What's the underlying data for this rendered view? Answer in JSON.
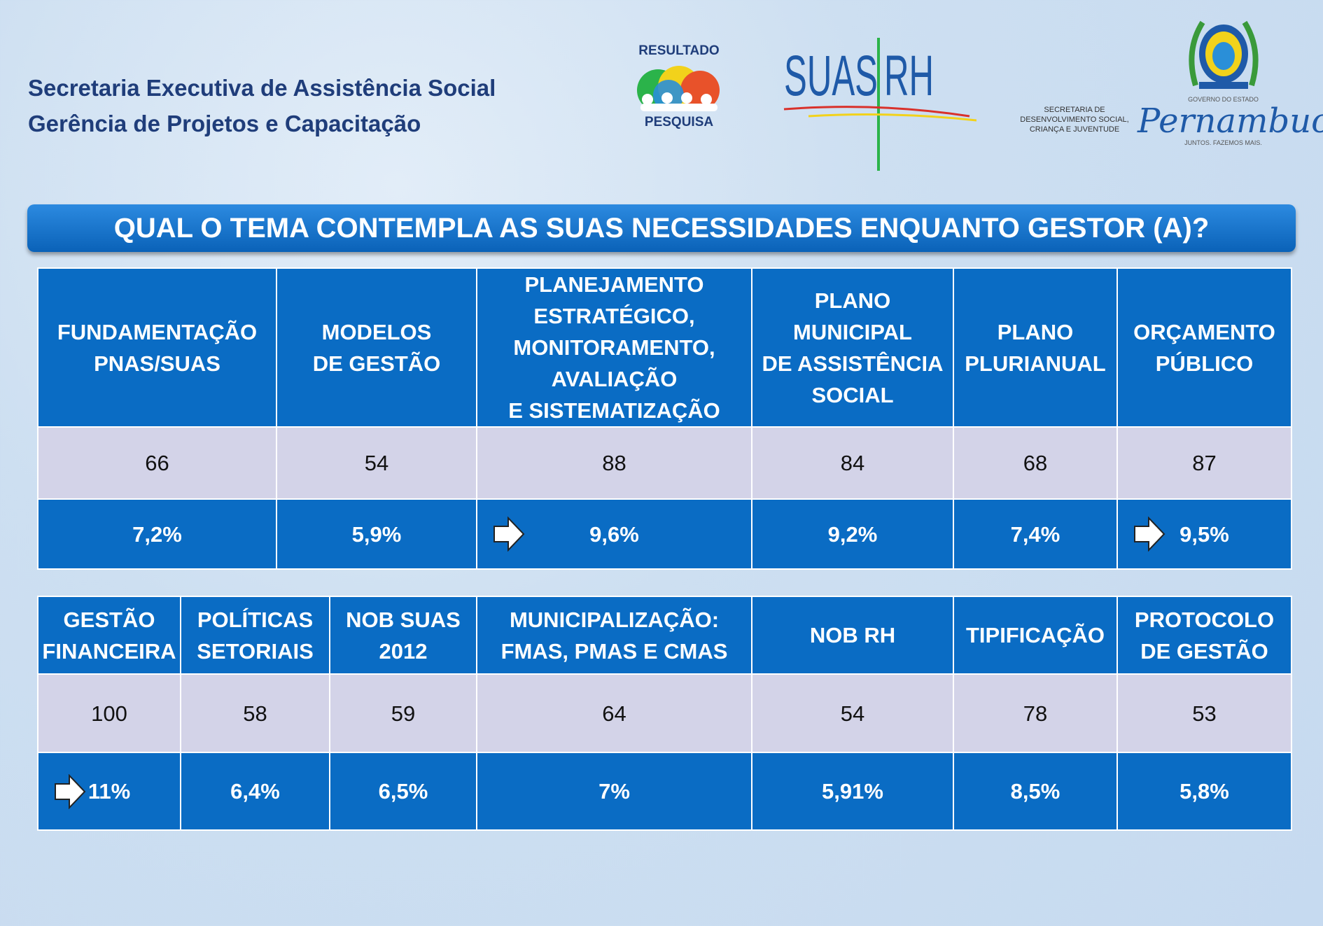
{
  "header": {
    "lines": [
      "Secretaria Executiva de Assistência Social",
      "Gerência de Projetos e Capacitação"
    ]
  },
  "logos": {
    "resultado_top": "RESULTADO",
    "resultado_bottom": "PESQUISA",
    "suas": "SUAS",
    "rh": "RH",
    "secretaria": "SECRETARIA DE\nDESENVOLVIMENTO SOCIAL,\nCRIANÇA E JUVENTUDE",
    "governo": "GOVERNO DO ESTADO",
    "estado": "Pernambuco",
    "slogan": "JUNTOS. FAZEMOS MAIS."
  },
  "title": "QUAL O TEMA CONTEMPLA AS SUAS NECESSIDADES ENQUANTO GESTOR (A)?",
  "tables": [
    {
      "headers": [
        "FUNDAMENTAÇÃO\nPNAS/SUAS",
        "MODELOS\nDE GESTÃO",
        "PLANEJAMENTO\nESTRATÉGICO,\nMONITORAMENTO,\nAVALIAÇÃO\nE SISTEMATIZAÇÃO",
        "PLANO\nMUNICIPAL\nDE ASSISTÊNCIA\nSOCIAL",
        "PLANO\nPLURIANUAL",
        "ORÇAMENTO\nPÚBLICO"
      ],
      "counts": [
        66,
        54,
        88,
        84,
        68,
        87
      ],
      "percents": [
        "7,2%",
        "5,9%",
        "9,6%",
        "9,2%",
        "7,4%",
        "9,5%"
      ]
    },
    {
      "headers": [
        "GESTÃO\nFINANCEIRA",
        "POLÍTICAS\nSETORIAIS",
        "NOB SUAS\n2012",
        "MUNICIPALIZAÇÃO:\nFMAS, PMAS E CMAS",
        "NOB RH",
        "TIPIFICAÇÃO",
        "PROTOCOLO\nDE GESTÃO"
      ],
      "counts": [
        100,
        58,
        59,
        64,
        54,
        78,
        53
      ],
      "percents": [
        "11%",
        "6,4%",
        "6,5%",
        "7%",
        "5,91%",
        "8,5%",
        "5,8%"
      ]
    }
  ]
}
